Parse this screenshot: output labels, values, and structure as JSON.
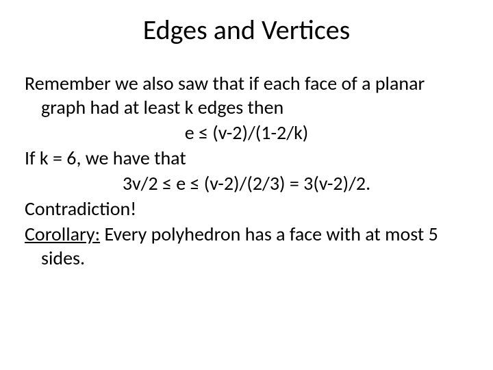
{
  "slide": {
    "title": "Edges and Vertices",
    "p1": "Remember we also saw that if each face of a planar graph had at least k edges then",
    "eq1": "e ≤ (v-2)/(1-2/k)",
    "p2": "If k = 6, we have that",
    "eq2": "3v/2 ≤ e ≤ (v-2)/(2/3) = 3(v-2)/2.",
    "p3": "Contradiction!",
    "cor_label": "Corollary:",
    "cor_text": " Every polyhedron has a face with at most 5 sides."
  },
  "style": {
    "background_color": "#ffffff",
    "text_color": "#000000",
    "title_fontsize": 40,
    "body_fontsize": 28,
    "font_family": "Calibri"
  }
}
